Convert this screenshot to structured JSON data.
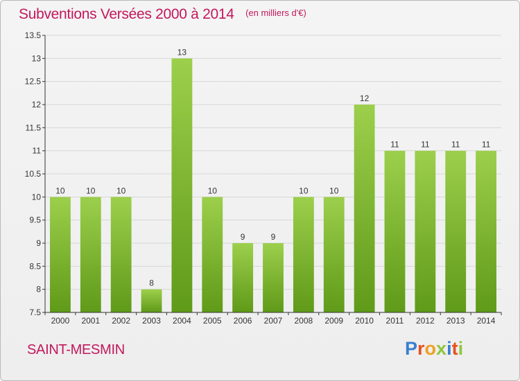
{
  "chart_data": {
    "type": "bar",
    "title": "Subventions Versées 2000 à 2014",
    "subtitle": "(en milliers d'€)",
    "xlabel": "",
    "ylabel": "",
    "categories": [
      "2000",
      "2001",
      "2002",
      "2003",
      "2004",
      "2005",
      "2006",
      "2007",
      "2008",
      "2009",
      "2010",
      "2011",
      "2012",
      "2013",
      "2014"
    ],
    "values": [
      10,
      10,
      10,
      8,
      13,
      10,
      9,
      9,
      10,
      10,
      12,
      11,
      11,
      11,
      11
    ],
    "value_labels": [
      "10",
      "10",
      "10",
      "8",
      "13",
      "10",
      "9",
      "9",
      "10",
      "10",
      "12",
      "11",
      "11",
      "11",
      "11"
    ],
    "ylim": [
      7.5,
      13.5
    ],
    "yticks": [
      7.5,
      8,
      8.5,
      9,
      9.5,
      10,
      10.5,
      11,
      11.5,
      12,
      12.5,
      13,
      13.5
    ],
    "ytick_labels": [
      "7.5",
      "8",
      "8.5",
      "9",
      "9.5",
      "10",
      "10.5",
      "11",
      "11.5",
      "12",
      "12.5",
      "13",
      "13.5"
    ],
    "grid": "horizontal",
    "legend": "none",
    "colors": {
      "bar_light": "#9ccf4c",
      "bar_dark": "#5f9a18",
      "grid": "#d6d6d6",
      "axis": "#333333",
      "title": "#c2185b"
    }
  },
  "footer": {
    "commune": "SAINT-MESMIN"
  },
  "brand": {
    "letters": [
      "P",
      "r",
      "o",
      "x",
      "i",
      "t",
      "i"
    ],
    "colors": [
      "#3a7fd0",
      "#e8501e",
      "#f0a020",
      "#8dc63f",
      "#3a7fd0",
      "#e8501e",
      "#8dc63f"
    ]
  }
}
